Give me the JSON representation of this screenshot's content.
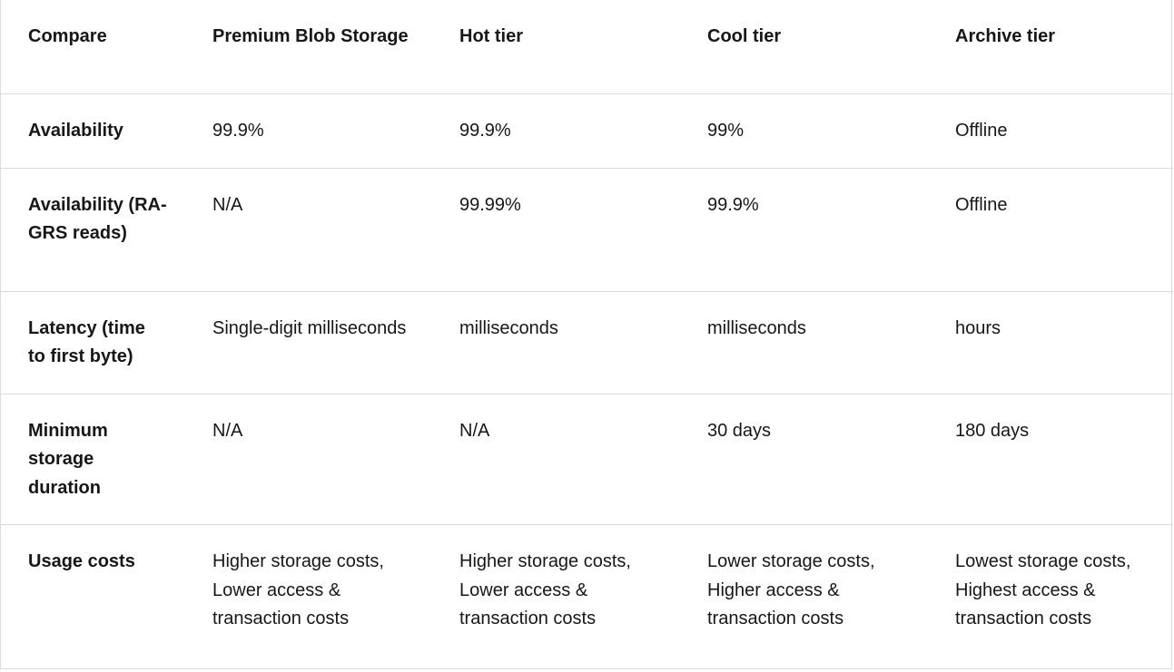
{
  "table": {
    "headers": [
      "Compare",
      "Premium Blob Storage",
      "Hot tier",
      "Cool tier",
      "Archive tier"
    ],
    "rows": [
      [
        "Availability",
        "99.9%",
        "99.9%",
        "99%",
        "Offline"
      ],
      [
        "Availability (RA-GRS reads)",
        "N/A",
        "99.99%",
        "99.9%",
        "Offline"
      ],
      [
        "Latency (time to first byte)",
        "Single-digit milliseconds",
        "milliseconds",
        "milliseconds",
        "hours"
      ],
      [
        "Minimum storage duration",
        "N/A",
        "N/A",
        "30 days",
        "180 days"
      ],
      [
        "Usage costs",
        "Higher storage costs, Lower access & transaction costs",
        "Higher storage costs, Lower access & transaction costs",
        "Lower storage costs, Higher access & transaction costs",
        "Lowest storage costs, Highest access & transaction costs"
      ]
    ]
  },
  "colors": {
    "text": "#171717",
    "border": "#dcdcdc",
    "background": "#ffffff"
  }
}
